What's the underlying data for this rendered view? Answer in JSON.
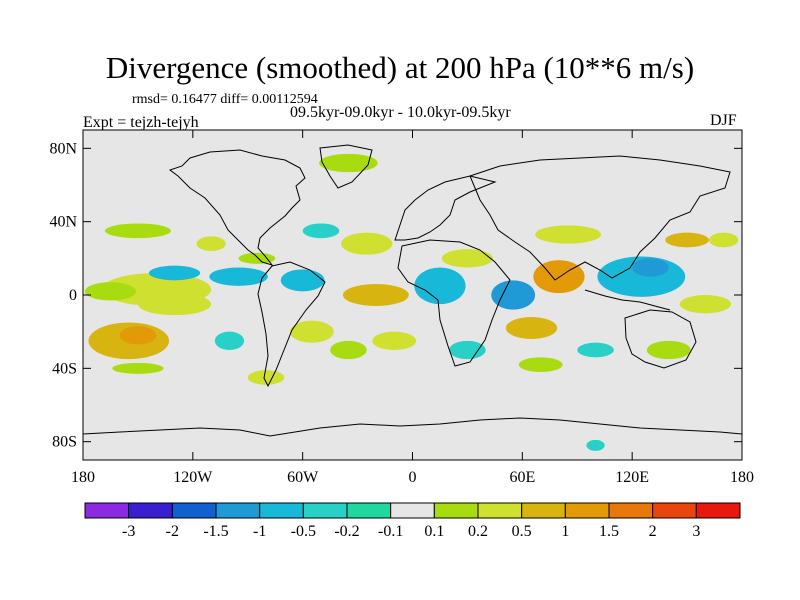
{
  "title": "Divergence (smoothed) at 200 hPa (10**6 m/s)",
  "stats": "rmsd= 0.16477 diff= 0.00112594",
  "subtitle": "09.5kyr-09.0kyr - 10.0kyr-09.5kyr",
  "experiment": "Expt = tejzh-tejyh",
  "season": "DJF",
  "map": {
    "background_color": "#e6e6e6",
    "lon_range": [
      -180,
      180
    ],
    "lat_range": [
      -90,
      90
    ],
    "lat_ticks": [
      {
        "value": 80,
        "label": "80N"
      },
      {
        "value": 40,
        "label": "40N"
      },
      {
        "value": 0,
        "label": "0"
      },
      {
        "value": -40,
        "label": "40S"
      },
      {
        "value": -80,
        "label": "80S"
      }
    ],
    "lon_ticks": [
      {
        "value": -180,
        "label": "180"
      },
      {
        "value": -120,
        "label": "120W"
      },
      {
        "value": -60,
        "label": "60W"
      },
      {
        "value": 0,
        "label": "0"
      },
      {
        "value": 60,
        "label": "60E"
      },
      {
        "value": 120,
        "label": "120E"
      },
      {
        "value": 180,
        "label": "180"
      }
    ]
  },
  "colorbar": {
    "colors": [
      "#8a2be2",
      "#3a1fd0",
      "#1060d0",
      "#1f9ad6",
      "#18b8d8",
      "#28d0c8",
      "#20d7a0",
      "#e6e6e6",
      "#a8dc10",
      "#cfe030",
      "#d8b410",
      "#e39a08",
      "#e8780a",
      "#e8460c",
      "#e8180c"
    ],
    "labels": [
      "-3",
      "-2",
      "-1.5",
      "-1",
      "-0.5",
      "-0.2",
      "-0.1",
      "0.1",
      "0.2",
      "0.5",
      "1",
      "1.5",
      "2",
      "3"
    ]
  },
  "chart_data": {
    "type": "heatmap",
    "title": "Divergence (smoothed) at 200 hPa (10**6 m/s)",
    "units": "10**6 m/s",
    "projection": "cylindrical equidistant",
    "lon_range": [
      -180,
      180
    ],
    "lat_range": [
      -90,
      90
    ],
    "levels": [
      -3,
      -2,
      -1.5,
      -1,
      -0.5,
      -0.2,
      -0.1,
      0.1,
      0.2,
      0.5,
      1,
      1.5,
      2,
      3
    ],
    "regions": [
      {
        "lon": -155,
        "lat": -25,
        "rx": 22,
        "ry": 10,
        "value": 1.0
      },
      {
        "lon": -150,
        "lat": -22,
        "rx": 10,
        "ry": 5,
        "value": 1.5
      },
      {
        "lon": -140,
        "lat": 3,
        "rx": 30,
        "ry": 9,
        "value": 0.5
      },
      {
        "lon": -130,
        "lat": -5,
        "rx": 20,
        "ry": 6,
        "value": 0.5
      },
      {
        "lon": -165,
        "lat": 2,
        "rx": 14,
        "ry": 5,
        "value": 0.2
      },
      {
        "lon": -130,
        "lat": 12,
        "rx": 14,
        "ry": 4,
        "value": -0.5
      },
      {
        "lon": -95,
        "lat": 10,
        "rx": 16,
        "ry": 5,
        "value": -0.5
      },
      {
        "lon": -110,
        "lat": 28,
        "rx": 8,
        "ry": 4,
        "value": 0.5
      },
      {
        "lon": -150,
        "lat": 35,
        "rx": 18,
        "ry": 4,
        "value": 0.2
      },
      {
        "lon": -85,
        "lat": 20,
        "rx": 10,
        "ry": 3,
        "value": 0.2
      },
      {
        "lon": -60,
        "lat": 8,
        "rx": 12,
        "ry": 6,
        "value": -0.5
      },
      {
        "lon": -55,
        "lat": -20,
        "rx": 12,
        "ry": 6,
        "value": 0.5
      },
      {
        "lon": -50,
        "lat": 35,
        "rx": 10,
        "ry": 4,
        "value": -0.2
      },
      {
        "lon": -25,
        "lat": 28,
        "rx": 14,
        "ry": 6,
        "value": 0.5
      },
      {
        "lon": -20,
        "lat": 0,
        "rx": 18,
        "ry": 6,
        "value": 1.0
      },
      {
        "lon": -10,
        "lat": -25,
        "rx": 12,
        "ry": 5,
        "value": 0.5
      },
      {
        "lon": -35,
        "lat": -30,
        "rx": 10,
        "ry": 5,
        "value": 0.2
      },
      {
        "lon": -35,
        "lat": 72,
        "rx": 16,
        "ry": 5,
        "value": 0.2
      },
      {
        "lon": -150,
        "lat": -40,
        "rx": 14,
        "ry": 3,
        "value": 0.2
      },
      {
        "lon": 15,
        "lat": 5,
        "rx": 14,
        "ry": 10,
        "value": -0.5
      },
      {
        "lon": 30,
        "lat": 20,
        "rx": 14,
        "ry": 5,
        "value": 0.5
      },
      {
        "lon": 55,
        "lat": 0,
        "rx": 12,
        "ry": 8,
        "value": -1.0
      },
      {
        "lon": 65,
        "lat": -18,
        "rx": 14,
        "ry": 6,
        "value": 1.0
      },
      {
        "lon": 80,
        "lat": 10,
        "rx": 14,
        "ry": 9,
        "value": 1.5
      },
      {
        "lon": 85,
        "lat": 33,
        "rx": 18,
        "ry": 5,
        "value": 0.5
      },
      {
        "lon": 125,
        "lat": 10,
        "rx": 24,
        "ry": 11,
        "value": -0.5
      },
      {
        "lon": 130,
        "lat": 15,
        "rx": 10,
        "ry": 5,
        "value": -1.0
      },
      {
        "lon": 150,
        "lat": 30,
        "rx": 12,
        "ry": 4,
        "value": 1.0
      },
      {
        "lon": 160,
        "lat": -5,
        "rx": 14,
        "ry": 5,
        "value": 0.5
      },
      {
        "lon": 140,
        "lat": -30,
        "rx": 12,
        "ry": 5,
        "value": 0.2
      },
      {
        "lon": 100,
        "lat": -30,
        "rx": 10,
        "ry": 4,
        "value": -0.2
      },
      {
        "lon": 70,
        "lat": -38,
        "rx": 12,
        "ry": 4,
        "value": 0.2
      },
      {
        "lon": 170,
        "lat": 30,
        "rx": 8,
        "ry": 4,
        "value": 0.5
      },
      {
        "lon": 100,
        "lat": -82,
        "rx": 5,
        "ry": 3,
        "value": -0.2
      },
      {
        "lon": 30,
        "lat": -30,
        "rx": 10,
        "ry": 5,
        "value": -0.2
      },
      {
        "lon": -100,
        "lat": -25,
        "rx": 8,
        "ry": 5,
        "value": -0.2
      },
      {
        "lon": -80,
        "lat": -45,
        "rx": 10,
        "ry": 4,
        "value": 0.5
      }
    ]
  }
}
